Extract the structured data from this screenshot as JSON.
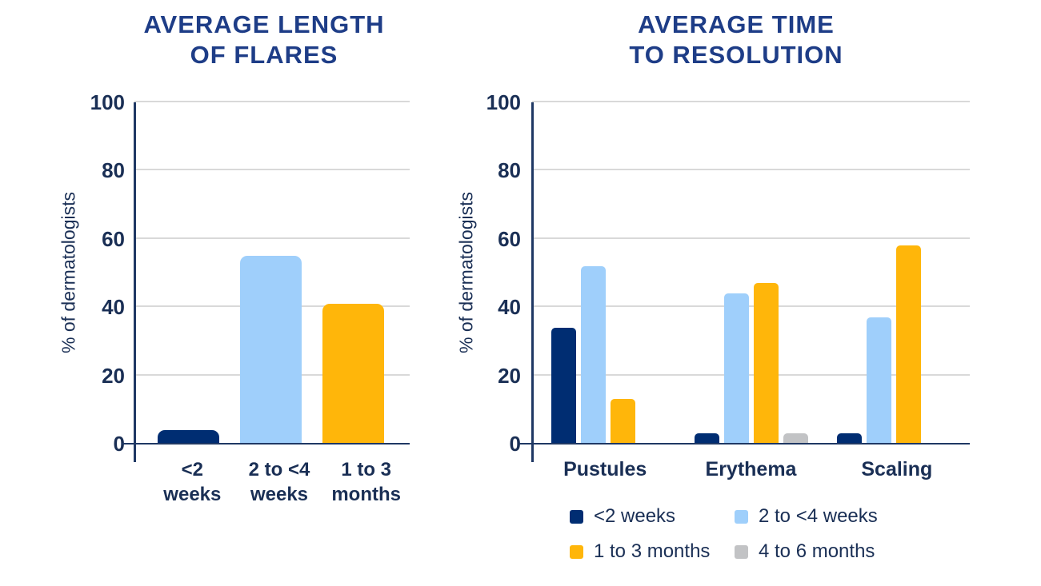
{
  "page": {
    "background": "#FFFFFF"
  },
  "colors": {
    "navy": "#002D72",
    "light_blue": "#9FCFFB",
    "orange": "#FFB60A",
    "gray": "#C2C3C5",
    "title_text": "#1E3D87",
    "label_text": "#1A2F55",
    "axis_line": "#1F3864",
    "gridline": "#D9D9D9"
  },
  "chart_data": [
    {
      "type": "bar",
      "title": "AVERAGE LENGTH OF FLARES",
      "title_lines": [
        "AVERAGE LENGTH",
        "OF FLARES"
      ],
      "ylabel": "% of dermatologists",
      "ylim": [
        0,
        100
      ],
      "yticks": [
        0,
        20,
        40,
        60,
        80,
        100
      ],
      "grid": true,
      "legend_position": "none",
      "categories": [
        "<2\nweeks",
        "2 to <4\nweeks",
        "1 to 3\nmonths"
      ],
      "values": [
        4,
        55,
        41
      ],
      "bar_colors": [
        "#002D72",
        "#9FCFFB",
        "#FFB60A"
      ]
    },
    {
      "type": "grouped_bar",
      "title": "AVERAGE TIME TO RESOLUTION",
      "title_lines": [
        "AVERAGE TIME",
        "TO RESOLUTION"
      ],
      "ylabel": "% of dermatologists",
      "ylim": [
        0,
        100
      ],
      "yticks": [
        0,
        20,
        40,
        60,
        80,
        100
      ],
      "grid": true,
      "legend_position": "bottom",
      "categories": [
        "Pustules",
        "Erythema",
        "Scaling"
      ],
      "series": [
        {
          "name": "<2 weeks",
          "color": "#002D72",
          "values": [
            34,
            3,
            3
          ]
        },
        {
          "name": "2 to <4 weeks",
          "color": "#9FCFFB",
          "values": [
            52,
            44,
            37
          ]
        },
        {
          "name": "1 to 3 months",
          "color": "#FFB60A",
          "values": [
            13,
            47,
            58
          ]
        },
        {
          "name": "4 to 6 months",
          "color": "#C2C3C5",
          "values": [
            0,
            3,
            0
          ]
        }
      ]
    }
  ]
}
